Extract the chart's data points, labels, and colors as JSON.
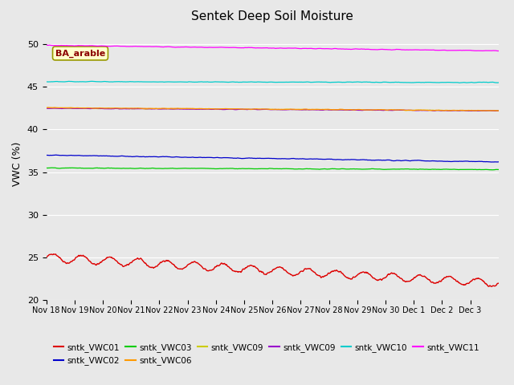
{
  "title": "Sentek Deep Soil Moisture",
  "ylabel": "VWC (%)",
  "ylim": [
    20,
    52
  ],
  "yticks": [
    20,
    25,
    30,
    35,
    40,
    45,
    50
  ],
  "x_tick_labels": [
    "Nov 18",
    "Nov 19",
    "Nov 20",
    "Nov 21",
    "Nov 22",
    "Nov 23",
    "Nov 24",
    "Nov 25",
    "Nov 26",
    "Nov 27",
    "Nov 28",
    "Nov 29",
    "Nov 30",
    "Dec 1",
    "Dec 2",
    "Dec 3"
  ],
  "annotation_text": "BA_arable",
  "bg_color": "#e8e8e8",
  "plot_bg_color": "#e8e8e8",
  "legend_entries": [
    {
      "label": "sntk_VWC01",
      "color": "#dd0000"
    },
    {
      "label": "sntk_VWC02",
      "color": "#0000cc"
    },
    {
      "label": "sntk_VWC03",
      "color": "#00cc00"
    },
    {
      "label": "sntk_VWC06",
      "color": "#ff9900"
    },
    {
      "label": "sntk_VWC09",
      "color": "#cccc00"
    },
    {
      "label": "sntk_VWC09",
      "color": "#9900cc"
    },
    {
      "label": "sntk_VWC10",
      "color": "#00cccc"
    },
    {
      "label": "sntk_VWC11",
      "color": "#ff00ff"
    }
  ]
}
